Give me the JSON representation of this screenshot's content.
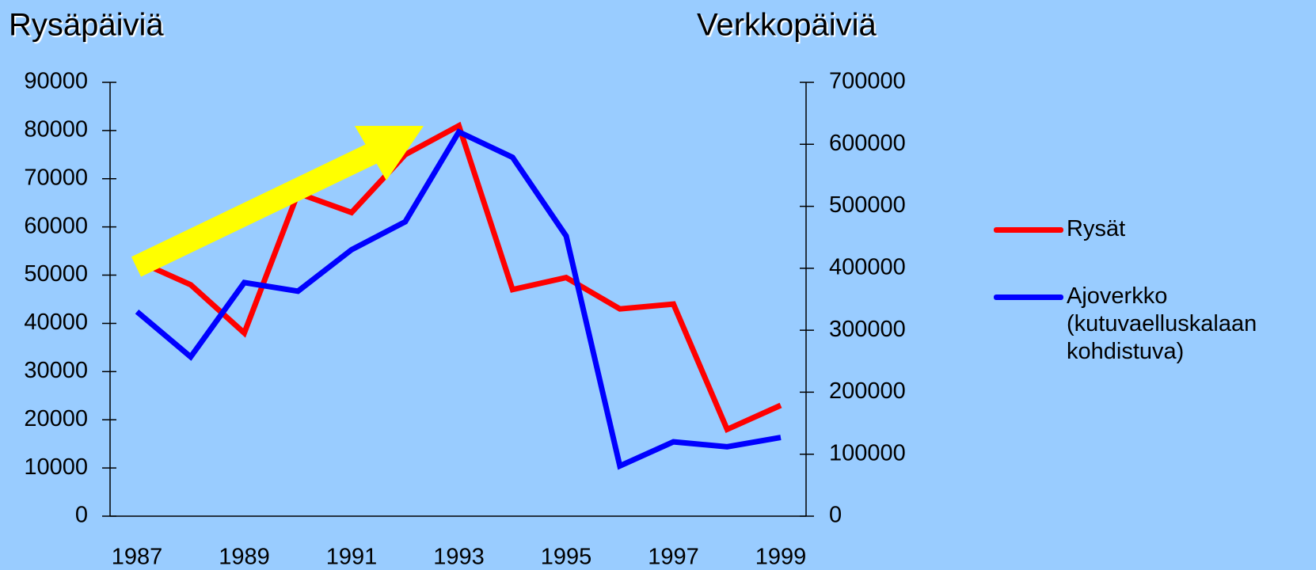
{
  "chart_data": {
    "type": "line",
    "ylabel": "Rysäpäiviä",
    "y2label": "Verkkopäiviä",
    "categories": [
      "1987",
      null,
      "1989",
      null,
      "1991",
      null,
      "1993",
      null,
      "1995",
      null,
      "1997",
      null,
      "1999"
    ],
    "series": [
      {
        "name": "Rysät",
        "color": "#ff0000",
        "values": [
          53000,
          48000,
          38000,
          67000,
          63000,
          75000,
          81000,
          47000,
          49500,
          43000,
          44000,
          18000,
          23000
        ]
      },
      {
        "name": "Ajoverkko (kutuvaelluskalaan kohdistuva)",
        "color": "#0000ff",
        "axis": "y2",
        "values": [
          330000,
          257000,
          377000,
          363000,
          430000,
          475000,
          620000,
          579000,
          452000,
          81000,
          120000,
          112000,
          127000
        ]
      }
    ],
    "ylim": [
      0,
      90000
    ],
    "yticks": [
      0,
      10000,
      20000,
      30000,
      40000,
      50000,
      60000,
      70000,
      80000,
      90000
    ],
    "y2lim": [
      0,
      700000
    ],
    "y2ticks": [
      0,
      100000,
      200000,
      300000,
      400000,
      500000,
      600000,
      700000
    ],
    "grid": false
  }
}
